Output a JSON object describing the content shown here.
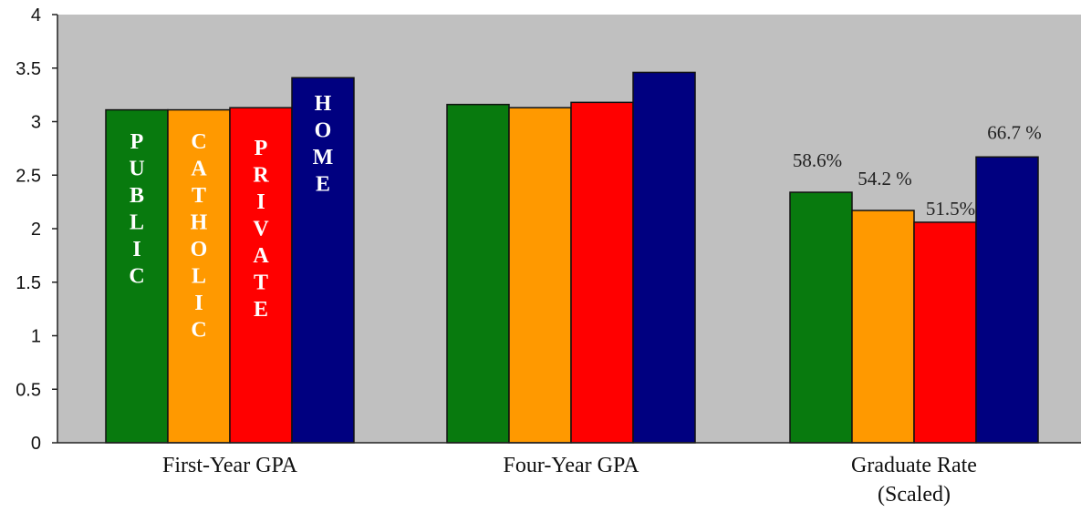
{
  "chart_data": {
    "type": "bar",
    "categories": [
      {
        "lines": [
          "First-Year GPA"
        ]
      },
      {
        "lines": [
          "Four-Year GPA"
        ]
      },
      {
        "lines": [
          "Graduate Rate",
          "(Scaled)"
        ]
      }
    ],
    "series": [
      {
        "name": "PUBLIC",
        "color": "#087a0e",
        "values": [
          3.11,
          3.16,
          2.34
        ],
        "data_labels": [
          "",
          "",
          "58.6%"
        ]
      },
      {
        "name": "CATHOLIC",
        "color": "#ff9900",
        "values": [
          3.11,
          3.13,
          2.17
        ],
        "data_labels": [
          "",
          "",
          "54.2 %"
        ]
      },
      {
        "name": "PRIVATE",
        "color": "#ff0000",
        "values": [
          3.13,
          3.18,
          2.06
        ],
        "data_labels": [
          "",
          "",
          "51.5%"
        ]
      },
      {
        "name": "HOME",
        "color": "#000080",
        "values": [
          3.41,
          3.46,
          2.67
        ],
        "data_labels": [
          "",
          "",
          "66.7 %"
        ]
      }
    ],
    "series_label_colors": [
      "#ffffff",
      "#ffffff",
      "#ffffff",
      "#ffffff"
    ],
    "ylim": [
      0,
      4
    ],
    "yticks": [
      "0",
      "0.5",
      "1",
      "1.5",
      "2",
      "2.5",
      "3",
      "3.5",
      "4"
    ],
    "ytick_values": [
      0,
      0.5,
      1,
      1.5,
      2,
      2.5,
      3,
      3.5,
      4
    ],
    "plot_background": "#c0c0c0",
    "grid": false,
    "legend": "vertical text inside first-group bars",
    "title": "",
    "xlabel": "",
    "ylabel": ""
  }
}
